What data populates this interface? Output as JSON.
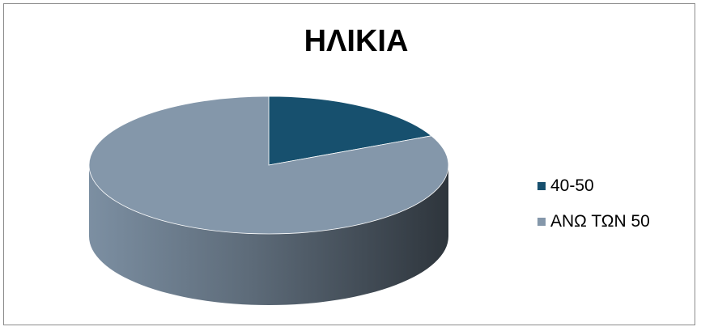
{
  "chart_data": {
    "type": "pie",
    "title": "ΗΛΙΚΙΑ",
    "categories": [
      "40-50",
      "ΑΝΩ ΤΩΝ 50"
    ],
    "values": [
      18,
      82
    ],
    "colors": [
      "#17506e",
      "#8497aa"
    ],
    "legend_position": "right",
    "style": "3d"
  }
}
